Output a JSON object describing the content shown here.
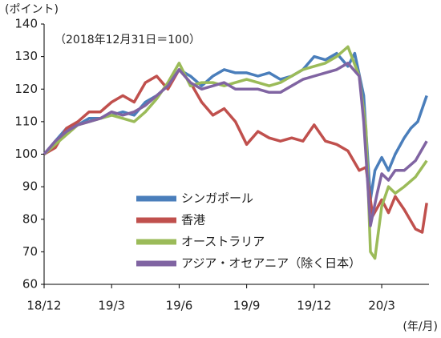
{
  "chart_data": {
    "type": "line",
    "y_label": "(ポイント)",
    "annotation": "（2018年12月31日＝100）",
    "x_label": "(年/月)",
    "xlim": [
      0,
      17.1
    ],
    "xticks": [
      {
        "value": 0,
        "label": "18/12"
      },
      {
        "value": 3,
        "label": "19/3"
      },
      {
        "value": 6,
        "label": "19/6"
      },
      {
        "value": 9,
        "label": "19/9"
      },
      {
        "value": 12,
        "label": "19/12"
      },
      {
        "value": 15,
        "label": "20/3"
      }
    ],
    "ylim": [
      60,
      140
    ],
    "yticks": [
      60,
      70,
      80,
      90,
      100,
      110,
      120,
      130,
      140
    ],
    "legend": "center-left",
    "series": [
      {
        "name": "シンガポール",
        "color": "#4a7ebb",
        "x": [
          0,
          0.5,
          1,
          1.5,
          2,
          2.5,
          3,
          3.5,
          4,
          4.5,
          5,
          5.5,
          6,
          6.5,
          7,
          7.5,
          8,
          8.5,
          9,
          9.5,
          10,
          10.5,
          11,
          11.5,
          12,
          12.5,
          13,
          13.5,
          13.8,
          14.2,
          14.5,
          14.7,
          15,
          15.3,
          15.6,
          16,
          16.3,
          16.6,
          17
        ],
        "values": [
          100,
          104,
          108,
          109,
          111,
          111,
          112,
          113,
          112,
          116,
          118,
          121,
          126,
          124,
          121,
          124,
          126,
          125,
          125,
          124,
          125,
          123,
          124,
          126,
          130,
          129,
          131,
          127,
          131,
          118,
          86,
          95,
          99,
          95,
          100,
          105,
          108,
          110,
          118
        ]
      },
      {
        "name": "香港",
        "color": "#c0504d",
        "x": [
          0,
          0.5,
          1,
          1.5,
          2,
          2.5,
          3,
          3.5,
          4,
          4.5,
          5,
          5.5,
          6,
          6.5,
          7,
          7.5,
          8,
          8.5,
          9,
          9.5,
          10,
          10.5,
          11,
          11.5,
          12,
          12.5,
          13,
          13.5,
          14,
          14.3,
          14.6,
          15,
          15.3,
          15.6,
          16,
          16.5,
          16.8,
          17
        ],
        "values": [
          100,
          102,
          108,
          110,
          113,
          113,
          116,
          118,
          116,
          122,
          124,
          120,
          126,
          122,
          116,
          112,
          114,
          110,
          103,
          107,
          105,
          104,
          105,
          104,
          109,
          104,
          103,
          101,
          95,
          96,
          81,
          86,
          82,
          87,
          83,
          77,
          76,
          85
        ]
      },
      {
        "name": "オーストラリア",
        "color": "#9bbb59",
        "x": [
          0,
          0.5,
          1,
          1.5,
          2,
          2.5,
          3,
          3.5,
          4,
          4.5,
          5,
          5.5,
          6,
          6.5,
          7,
          7.5,
          8,
          8.5,
          9,
          9.5,
          10,
          10.5,
          11,
          11.5,
          12,
          12.5,
          13,
          13.5,
          14,
          14.3,
          14.5,
          14.7,
          15,
          15.3,
          15.6,
          16,
          16.5,
          17
        ],
        "values": [
          100,
          103,
          106,
          109,
          110,
          111,
          112,
          111,
          110,
          113,
          117,
          122,
          128,
          121,
          122,
          122,
          121,
          122,
          123,
          122,
          121,
          122,
          124,
          126,
          127,
          128,
          130,
          133,
          124,
          108,
          70,
          68,
          84,
          90,
          88,
          90,
          93,
          98
        ]
      },
      {
        "name": "アジア・オセアニア（除く日本）",
        "color": "#8064a2",
        "x": [
          0,
          0.5,
          1,
          1.5,
          2,
          2.5,
          3,
          3.5,
          4,
          4.5,
          5,
          5.5,
          6,
          6.5,
          7,
          7.5,
          8,
          8.5,
          9,
          9.5,
          10,
          10.5,
          11,
          11.5,
          12,
          12.5,
          13,
          13.5,
          14,
          14.2,
          14.5,
          14.8,
          15,
          15.3,
          15.6,
          16,
          16.5,
          17
        ],
        "values": [
          100,
          104,
          107,
          109,
          110,
          111,
          113,
          112,
          113,
          115,
          118,
          121,
          126,
          122,
          120,
          121,
          122,
          120,
          120,
          120,
          119,
          119,
          121,
          123,
          124,
          125,
          126,
          128,
          124,
          110,
          78,
          88,
          94,
          92,
          95,
          95,
          98,
          104
        ]
      }
    ]
  }
}
